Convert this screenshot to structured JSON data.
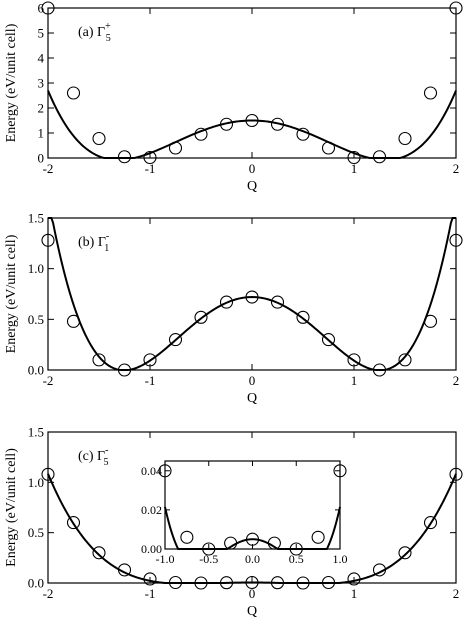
{
  "chart_data": [
    {
      "type": "line",
      "panel_label": "(a) Γ",
      "panel_sup": "+",
      "panel_sub": "5",
      "xlabel": "Q",
      "ylabel": "Energy (eV/unit cell)",
      "xlim": [
        -2,
        2
      ],
      "ylim": [
        0,
        6
      ],
      "xticks": [
        -2,
        -1,
        0,
        1,
        2
      ],
      "yticks": [
        0,
        1,
        2,
        3,
        4,
        5,
        6
      ],
      "xtick_labels": [
        "-2",
        "-1",
        "0",
        "1",
        "2"
      ],
      "ytick_labels": [
        "0",
        "1",
        "2",
        "3",
        "4",
        "5",
        "6"
      ],
      "curve": {
        "a": 1.5,
        "b": -1.84,
        "c": 0.535
      },
      "points": {
        "x": [
          -2,
          -1.75,
          -1.5,
          -1.25,
          -1,
          -0.75,
          -0.5,
          -0.25,
          0,
          0.25,
          0.5,
          0.75,
          1,
          1.25,
          1.5,
          1.75,
          2
        ],
        "y": [
          6.0,
          2.6,
          0.78,
          0.05,
          0.02,
          0.4,
          0.95,
          1.35,
          1.5,
          1.35,
          0.95,
          0.4,
          0.02,
          0.05,
          0.78,
          2.6,
          6.0
        ]
      }
    },
    {
      "type": "line",
      "panel_label": "(b) Γ",
      "panel_sup": "-",
      "panel_sub": "1",
      "xlabel": "Q",
      "ylabel": "Energy (eV/unit cell)",
      "xlim": [
        -2,
        2
      ],
      "ylim": [
        0,
        1.5
      ],
      "xticks": [
        -2,
        -1,
        0,
        1,
        2
      ],
      "yticks": [
        0,
        0.5,
        1,
        1.5
      ],
      "xtick_labels": [
        "-2",
        "-1",
        "0",
        "1",
        "2"
      ],
      "ytick_labels": [
        "0.0",
        "0.5",
        "1.0",
        "1.5"
      ],
      "curve": {
        "a": 0.72,
        "b": -0.92,
        "c": 0.2925
      },
      "points": {
        "x": [
          -2,
          -1.75,
          -1.5,
          -1.25,
          -1,
          -0.75,
          -0.5,
          -0.25,
          0,
          0.25,
          0.5,
          0.75,
          1,
          1.25,
          1.5,
          1.75,
          2
        ],
        "y": [
          1.28,
          0.48,
          0.1,
          0.0,
          0.1,
          0.3,
          0.52,
          0.67,
          0.72,
          0.67,
          0.52,
          0.3,
          0.1,
          0.0,
          0.1,
          0.48,
          1.28
        ]
      }
    },
    {
      "type": "line",
      "panel_label": "(c) Γ",
      "panel_sup": "-",
      "panel_sub": "5",
      "xlabel": "Q",
      "ylabel": "Energy (eV/unit cell)",
      "xlim": [
        -2,
        2
      ],
      "ylim": [
        0,
        1.5
      ],
      "xticks": [
        -2,
        -1,
        0,
        1,
        2
      ],
      "yticks": [
        0,
        0.5,
        1,
        1.5
      ],
      "xtick_labels": [
        "-2",
        "-1",
        "0",
        "1",
        "2"
      ],
      "ytick_labels": [
        "0.0",
        "0.5",
        "1.0",
        "1.5"
      ],
      "curve": {
        "a": 0.005,
        "b": -0.068,
        "c": 0.0845
      },
      "points": {
        "x": [
          -2,
          -1.75,
          -1.5,
          -1.25,
          -1,
          -0.75,
          -0.5,
          -0.25,
          0,
          0.25,
          0.5,
          0.75,
          1,
          1.25,
          1.5,
          1.75,
          2
        ],
        "y": [
          1.08,
          0.6,
          0.3,
          0.13,
          0.04,
          0.005,
          0.0,
          0.003,
          0.005,
          0.003,
          0.0,
          0.005,
          0.04,
          0.13,
          0.3,
          0.6,
          1.08
        ]
      },
      "inset": {
        "type": "line",
        "xlim": [
          -1,
          1
        ],
        "ylim": [
          0,
          0.045
        ],
        "xticks": [
          -1,
          -0.5,
          0,
          0.5,
          1
        ],
        "yticks": [
          0,
          0.02,
          0.04
        ],
        "xtick_labels": [
          "-1.0",
          "-0.5",
          "0.0",
          "0.5",
          "1.0"
        ],
        "ytick_labels": [
          "0.00",
          "0.02",
          "0.04"
        ],
        "points": {
          "x": [
            -1,
            -0.75,
            -0.5,
            -0.25,
            0,
            0.25,
            0.5,
            0.75,
            1
          ],
          "y": [
            0.04,
            0.006,
            0.0,
            0.003,
            0.005,
            0.003,
            0.0,
            0.006,
            0.04
          ]
        }
      }
    }
  ]
}
